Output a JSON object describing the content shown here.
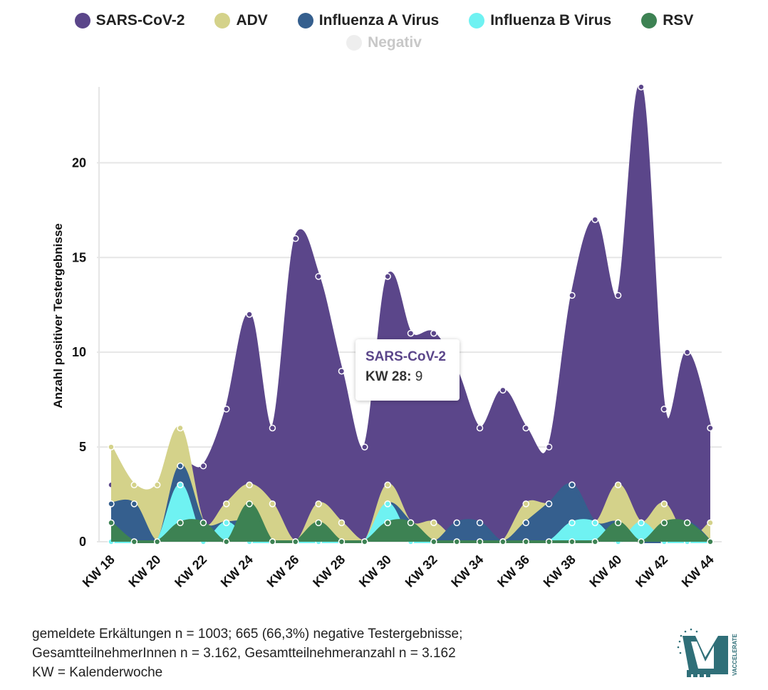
{
  "legend": [
    {
      "name": "SARS-CoV-2",
      "color": "#5b468a",
      "active": true
    },
    {
      "name": "ADV",
      "color": "#d4d28a",
      "active": true
    },
    {
      "name": "Influenza A Virus",
      "color": "#355f8e",
      "active": true
    },
    {
      "name": "Influenza B Virus",
      "color": "#6ff2f2",
      "active": true
    },
    {
      "name": "RSV",
      "color": "#3d8253",
      "active": true
    },
    {
      "name": "Negativ",
      "color": "#eeeeee",
      "active": false
    }
  ],
  "tooltip": {
    "series": "SARS-CoV-2",
    "label": "KW 28:",
    "value": "9"
  },
  "footnote": {
    "line1": "gemeldete Erkältungen n = 1003; 665 (66,3%) negative Testergebnisse;",
    "line2": "GesamtteilnehmerInnen n = 3.162, Gesamtteilnehmeranzahl n = 3.162",
    "line3": "KW = Kalenderwoche"
  },
  "logo": {
    "text": "VACCELERATE"
  },
  "chart_data": {
    "type": "area",
    "ylabel": "Anzahl positiver Testergebnisse",
    "xlabel": "",
    "ylim": [
      0,
      24
    ],
    "yticks": [
      0,
      5,
      10,
      15,
      20
    ],
    "grid": true,
    "categories": [
      "KW 18",
      "KW 19",
      "KW 20",
      "KW 21",
      "KW 22",
      "KW 23",
      "KW 24",
      "KW 25",
      "KW 26",
      "KW 27",
      "KW 28",
      "KW 29",
      "KW 30",
      "KW 31",
      "KW 32",
      "KW 33",
      "KW 34",
      "KW 35",
      "KW 36",
      "KW 37",
      "KW 38",
      "KW 39",
      "KW 40",
      "KW 41",
      "KW 42",
      "KW 43",
      "KW 44"
    ],
    "tick_labels": [
      "KW 18",
      "KW 20",
      "KW 22",
      "KW 24",
      "KW 26",
      "KW 28",
      "KW 30",
      "KW 32",
      "KW 34",
      "KW 36",
      "KW 38",
      "KW 40",
      "KW 42",
      "KW 44"
    ],
    "series": [
      {
        "name": "SARS-CoV-2",
        "color": "#5b468a",
        "values": [
          3,
          3,
          1,
          4,
          4,
          7,
          12,
          6,
          16,
          14,
          9,
          5,
          14,
          11,
          11,
          9,
          6,
          8,
          6,
          5,
          13,
          17,
          13,
          24,
          7,
          10,
          6
        ]
      },
      {
        "name": "ADV",
        "color": "#d4d28a",
        "values": [
          5,
          3,
          3,
          6,
          1,
          2,
          3,
          2,
          0,
          2,
          1,
          0,
          3,
          1,
          1,
          0,
          0,
          0,
          2,
          2,
          3,
          1,
          3,
          1,
          2,
          0,
          1
        ]
      },
      {
        "name": "Influenza A Virus",
        "color": "#355f8e",
        "values": [
          2,
          2,
          0,
          4,
          1,
          1,
          1,
          0,
          0,
          0,
          0,
          0,
          2,
          1,
          0,
          1,
          1,
          0,
          1,
          2,
          3,
          1,
          1,
          0,
          0,
          1,
          0
        ]
      },
      {
        "name": "Influenza B Virus",
        "color": "#6ff2f2",
        "values": [
          0,
          0,
          0,
          3,
          0,
          1,
          0,
          0,
          0,
          0,
          0,
          0,
          2,
          0,
          0,
          0,
          0,
          0,
          0,
          0,
          1,
          1,
          0,
          1,
          0,
          0,
          0
        ]
      },
      {
        "name": "RSV",
        "color": "#3d8253",
        "values": [
          1,
          0,
          0,
          1,
          1,
          0,
          2,
          0,
          0,
          1,
          0,
          0,
          1,
          1,
          0,
          0,
          0,
          0,
          0,
          0,
          0,
          0,
          1,
          0,
          1,
          1,
          0
        ]
      }
    ]
  }
}
